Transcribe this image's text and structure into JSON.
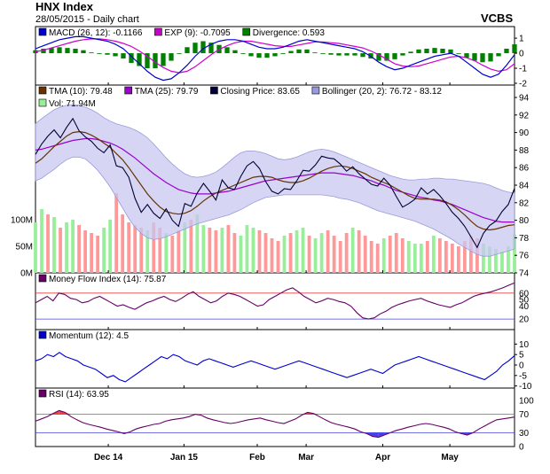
{
  "header": {
    "title": "HNX Index",
    "date_line": "28/05/2015 - Daily chart",
    "brand": "VCBS"
  },
  "colors": {
    "macd": "#0000cc",
    "signal": "#cc00cc",
    "divergence": "#008000",
    "tma10": "#663300",
    "tma25": "#9900cc",
    "close": "#000033",
    "bollinger_fill": "#c8c8f0",
    "bollinger_edge": "#9999dd",
    "vol_up": "#99ee99",
    "vol_down": "#ff9999",
    "mfi": "#660066",
    "momentum": "#0000cc",
    "rsi": "#660066",
    "rsi_over": "#ee4444",
    "rsi_under": "#4444ee",
    "guide_high": "#dd4444",
    "guide_low": "#4444dd"
  },
  "chart_data": [
    {
      "type": "line",
      "panel": "macd",
      "legend": [
        {
          "label": "MACD (26, 12): -0.1166",
          "color_key": "macd"
        },
        {
          "label": "EXP (9): -0.7095",
          "color_key": "signal"
        },
        {
          "label": "Divergence: 0.593",
          "color_key": "divergence"
        }
      ],
      "ylim": [
        -2,
        1.3
      ],
      "yticks": [
        "1",
        "0",
        "-1",
        "-2"
      ],
      "series": [
        {
          "key": "macd",
          "values": [
            0.3,
            0.5,
            0.7,
            0.9,
            1.0,
            1.1,
            1.1,
            1.0,
            0.9,
            0.8,
            0.6,
            0.3,
            -0.2,
            -0.7,
            -1.2,
            -1.6,
            -1.8,
            -1.7,
            -1.3,
            -0.8,
            -0.2,
            0.3,
            0.6,
            0.8,
            0.9,
            0.9,
            0.8,
            0.6,
            0.4,
            0.3,
            0.3,
            0.4,
            0.6,
            0.8,
            0.9,
            0.8,
            0.7,
            0.6,
            0.5,
            0.4,
            0.3,
            0.1,
            -0.2,
            -0.6,
            -0.9,
            -1.1,
            -1.0,
            -0.8,
            -0.6,
            -0.4,
            -0.2,
            -0.1,
            0.0,
            -0.2,
            -0.6,
            -1.0,
            -1.4,
            -1.6,
            -1.4,
            -0.8,
            -0.1
          ]
        },
        {
          "key": "signal",
          "values": [
            0.1,
            0.2,
            0.35,
            0.5,
            0.65,
            0.8,
            0.9,
            0.95,
            0.95,
            0.9,
            0.8,
            0.65,
            0.45,
            0.15,
            -0.2,
            -0.6,
            -0.95,
            -1.2,
            -1.3,
            -1.2,
            -0.9,
            -0.5,
            -0.1,
            0.25,
            0.5,
            0.7,
            0.8,
            0.8,
            0.7,
            0.6,
            0.5,
            0.45,
            0.45,
            0.55,
            0.65,
            0.75,
            0.75,
            0.7,
            0.65,
            0.55,
            0.45,
            0.35,
            0.15,
            -0.1,
            -0.4,
            -0.7,
            -0.85,
            -0.9,
            -0.85,
            -0.7,
            -0.55,
            -0.4,
            -0.25,
            -0.2,
            -0.3,
            -0.5,
            -0.8,
            -1.05,
            -1.2,
            -1.1,
            -0.7
          ]
        },
        {
          "key": "divergence",
          "values": [
            0.2,
            0.3,
            0.35,
            0.4,
            0.35,
            0.3,
            0.2,
            0.05,
            -0.05,
            -0.1,
            -0.2,
            -0.35,
            -0.65,
            -0.85,
            -1.0,
            -1.0,
            -0.85,
            -0.5,
            0.0,
            0.4,
            0.7,
            0.8,
            0.7,
            0.55,
            0.4,
            0.2,
            0.0,
            -0.2,
            -0.3,
            -0.3,
            -0.2,
            -0.05,
            0.15,
            0.25,
            0.25,
            0.05,
            -0.05,
            -0.1,
            -0.15,
            -0.15,
            -0.15,
            -0.25,
            -0.35,
            -0.5,
            -0.5,
            -0.4,
            -0.15,
            0.1,
            0.25,
            0.3,
            0.35,
            0.3,
            0.25,
            0.0,
            -0.3,
            -0.5,
            -0.6,
            -0.55,
            -0.2,
            0.3,
            0.59
          ]
        }
      ]
    },
    {
      "type": "line",
      "panel": "price",
      "legend": [
        {
          "label": "TMA (10): 79.48",
          "color_key": "tma10"
        },
        {
          "label": "TMA (25): 79.79",
          "color_key": "tma25"
        },
        {
          "label": "Closing Price: 83.65",
          "color_key": "close"
        },
        {
          "label": "Bollinger (20, 2): 76.72 - 83.12",
          "color_key": "bollinger_edge"
        },
        {
          "label": "Vol: 71.94M",
          "color_key": "vol_up"
        }
      ],
      "ylim": [
        74,
        94
      ],
      "yticks": [
        "94",
        "92",
        "90",
        "88",
        "86",
        "84",
        "82",
        "80",
        "78",
        "76",
        "74"
      ],
      "volume_ticks": [
        "100M",
        "50M",
        "0M"
      ],
      "volume_max": 180,
      "close": [
        87.5,
        88.7,
        89.6,
        90.3,
        89.4,
        90.6,
        91.6,
        90.2,
        89.5,
        89.0,
        88.2,
        87.7,
        88.6,
        86.2,
        86.0,
        84.9,
        82.5,
        80.9,
        81.8,
        80.8,
        80.2,
        81.3,
        80.0,
        79.3,
        81.9,
        81.6,
        83.1,
        84.2,
        83.3,
        82.3,
        84.6,
        83.7,
        83.5,
        85.0,
        86.2,
        86.7,
        85.9,
        84.4,
        83.3,
        83.0,
        83.6,
        83.5,
        84.5,
        85.7,
        85.6,
        86.3,
        87.3,
        87.1,
        87.0,
        86.4,
        85.6,
        86.1,
        85.3,
        84.7,
        84.1,
        83.9,
        84.8,
        84.0,
        82.7,
        81.5,
        81.9,
        82.4,
        83.7,
        83.0,
        83.5,
        82.8,
        81.9,
        80.9,
        80.2,
        79.3,
        78.1,
        76.9,
        78.5,
        79.4,
        79.9,
        81.0,
        81.8,
        83.65
      ],
      "tma10": [
        86.5,
        87.0,
        87.7,
        88.4,
        89.0,
        89.6,
        90.0,
        90.1,
        90.0,
        89.7,
        89.3,
        88.8,
        88.3,
        87.6,
        86.9,
        86.0,
        85.0,
        84.0,
        83.0,
        82.2,
        81.5,
        81.0,
        80.8,
        80.7,
        80.8,
        81.1,
        81.6,
        82.2,
        82.7,
        83.1,
        83.4,
        83.7,
        84.0,
        84.3,
        84.6,
        84.9,
        85.0,
        85.0,
        84.9,
        84.6,
        84.4,
        84.3,
        84.3,
        84.5,
        84.8,
        85.2,
        85.6,
        85.9,
        86.1,
        86.2,
        86.1,
        85.9,
        85.6,
        85.3,
        84.9,
        84.6,
        84.3,
        84.0,
        83.6,
        83.2,
        82.8,
        82.5,
        82.4,
        82.4,
        82.4,
        82.3,
        82.1,
        81.7,
        81.2,
        80.6,
        79.9,
        79.3,
        79.0,
        78.9,
        79.0,
        79.2,
        79.4,
        79.48
      ],
      "tma25": [
        88.0,
        88.1,
        88.3,
        88.5,
        88.7,
        88.9,
        89.1,
        89.2,
        89.3,
        89.3,
        89.2,
        89.0,
        88.8,
        88.5,
        88.1,
        87.6,
        87.1,
        86.5,
        85.9,
        85.3,
        84.8,
        84.3,
        83.9,
        83.5,
        83.3,
        83.1,
        83.0,
        83.0,
        83.0,
        83.1,
        83.2,
        83.3,
        83.5,
        83.7,
        83.9,
        84.1,
        84.3,
        84.5,
        84.6,
        84.7,
        84.8,
        84.9,
        85.0,
        85.1,
        85.2,
        85.3,
        85.4,
        85.4,
        85.4,
        85.3,
        85.2,
        85.1,
        84.9,
        84.7,
        84.5,
        84.2,
        84.0,
        83.7,
        83.4,
        83.2,
        83.0,
        82.8,
        82.6,
        82.5,
        82.3,
        82.2,
        82.0,
        81.8,
        81.5,
        81.2,
        80.9,
        80.6,
        80.3,
        80.1,
        79.9,
        79.8,
        79.8,
        79.79
      ],
      "bb_upper": [
        91.0,
        91.6,
        92.1,
        92.6,
        92.9,
        93.1,
        93.2,
        93.1,
        92.9,
        92.6,
        92.2,
        91.7,
        91.3,
        91.0,
        90.8,
        90.6,
        90.3,
        89.9,
        89.4,
        88.7,
        87.9,
        87.1,
        86.4,
        85.8,
        85.3,
        85.0,
        84.9,
        85.0,
        85.2,
        85.5,
        86.0,
        86.6,
        87.2,
        87.7,
        87.9,
        87.9,
        87.8,
        87.6,
        87.3,
        87.0,
        86.9,
        87.0,
        87.2,
        87.5,
        87.8,
        88.0,
        88.1,
        88.0,
        87.8,
        87.5,
        87.2,
        86.9,
        86.6,
        86.3,
        86.0,
        85.7,
        85.4,
        85.1,
        84.9,
        84.7,
        84.6,
        84.6,
        84.7,
        84.7,
        84.8,
        84.8,
        84.7,
        84.7,
        84.6,
        84.5,
        84.4,
        84.3,
        84.2,
        84.0,
        83.7,
        83.4,
        83.2,
        83.12
      ],
      "bb_lower": [
        84.5,
        84.8,
        85.3,
        85.8,
        86.4,
        86.9,
        87.2,
        87.2,
        87.0,
        86.4,
        85.7,
        84.8,
        83.8,
        82.6,
        81.4,
        80.2,
        79.2,
        78.5,
        78.0,
        77.8,
        77.9,
        78.1,
        78.4,
        78.7,
        79.0,
        79.3,
        79.6,
        79.8,
        80.0,
        80.2,
        80.4,
        80.6,
        80.9,
        81.2,
        81.6,
        82.0,
        82.3,
        82.6,
        82.7,
        82.8,
        82.9,
        82.9,
        82.9,
        82.9,
        82.9,
        82.9,
        82.9,
        82.8,
        82.7,
        82.5,
        82.4,
        82.2,
        82.0,
        81.7,
        81.4,
        81.1,
        80.9,
        80.7,
        80.5,
        80.3,
        80.1,
        79.9,
        79.6,
        79.3,
        79.0,
        78.6,
        78.2,
        77.8,
        77.3,
        76.9,
        76.5,
        76.1,
        75.9,
        75.9,
        76.1,
        76.3,
        76.5,
        76.72
      ],
      "volume": [
        95,
        120,
        110,
        105,
        85,
        95,
        100,
        90,
        80,
        75,
        70,
        85,
        100,
        150,
        110,
        95,
        90,
        85,
        80,
        95,
        85,
        75,
        70,
        80,
        95,
        100,
        110,
        90,
        85,
        80,
        85,
        90,
        75,
        70,
        90,
        85,
        80,
        75,
        65,
        60,
        70,
        75,
        80,
        85,
        70,
        65,
        75,
        80,
        70,
        60,
        75,
        85,
        80,
        70,
        60,
        55,
        65,
        70,
        75,
        65,
        60,
        55,
        55,
        60,
        70,
        65,
        60,
        55,
        50,
        60,
        70,
        65,
        55,
        50,
        45,
        40,
        50,
        71.94
      ],
      "volume_up": [
        true,
        true,
        false,
        true,
        false,
        true,
        true,
        false,
        false,
        false,
        false,
        true,
        true,
        false,
        false,
        false,
        false,
        false,
        true,
        false,
        false,
        true,
        false,
        false,
        true,
        false,
        true,
        true,
        false,
        false,
        true,
        false,
        false,
        true,
        true,
        true,
        false,
        false,
        false,
        false,
        true,
        false,
        true,
        true,
        false,
        true,
        true,
        false,
        false,
        false,
        false,
        true,
        false,
        false,
        false,
        false,
        true,
        false,
        false,
        false,
        true,
        true,
        true,
        false,
        true,
        false,
        false,
        false,
        false,
        false,
        false,
        false,
        true,
        true,
        true,
        true,
        true,
        true
      ]
    },
    {
      "type": "line",
      "panel": "mfi",
      "legend": [
        {
          "label": "Money Flow Index (14): 75.87",
          "color_key": "mfi"
        }
      ],
      "ylim": [
        12,
        72
      ],
      "yticks": [
        "60",
        "50",
        "40",
        "20"
      ],
      "guides": [
        80,
        20
      ],
      "values": [
        45,
        50,
        55,
        48,
        60,
        58,
        52,
        50,
        45,
        47,
        52,
        55,
        50,
        45,
        40,
        42,
        38,
        35,
        40,
        45,
        48,
        52,
        55,
        50,
        47,
        52,
        58,
        62,
        55,
        50,
        45,
        48,
        55,
        60,
        58,
        55,
        50,
        45,
        40,
        42,
        50,
        55,
        60,
        65,
        68,
        62,
        55,
        50,
        45,
        48,
        52,
        50,
        47,
        45,
        40,
        30,
        22,
        20,
        22,
        28,
        32,
        38,
        42,
        45,
        48,
        50,
        52,
        48,
        45,
        42,
        40,
        38,
        42,
        45,
        50,
        55,
        58,
        60,
        62,
        65,
        68,
        72,
        75.87
      ]
    },
    {
      "type": "line",
      "panel": "momentum",
      "legend": [
        {
          "label": "Momentum (12): 4.5",
          "color_key": "momentum"
        }
      ],
      "ylim": [
        -11,
        11
      ],
      "yticks": [
        "10",
        "5",
        "0",
        "-5",
        "-10"
      ],
      "values": [
        2,
        3,
        5,
        4,
        6,
        4,
        3,
        2,
        0,
        -1,
        -2,
        -4,
        -6,
        -5,
        -7,
        -8,
        -6,
        -4,
        -2,
        0,
        2,
        4,
        3,
        5,
        4,
        2,
        1,
        0,
        2,
        3,
        2,
        1,
        0,
        -1,
        0,
        1,
        2,
        1,
        0,
        -1,
        -2,
        -1,
        0,
        1,
        2,
        1,
        0,
        -1,
        -2,
        -3,
        -4,
        -5,
        -6,
        -5,
        -4,
        -3,
        -2,
        -3,
        -4,
        -2,
        0,
        1,
        2,
        3,
        4,
        3,
        2,
        1,
        0,
        -1,
        -2,
        -3,
        -4,
        -5,
        -6,
        -7,
        -5,
        -3,
        0,
        2,
        4.5
      ]
    },
    {
      "type": "line",
      "panel": "rsi",
      "legend": [
        {
          "label": "RSI (14): 63.95",
          "color_key": "rsi"
        }
      ],
      "ylim": [
        0,
        100
      ],
      "yticks": [
        "100",
        "70",
        "30",
        "0"
      ],
      "guides": [
        70,
        30
      ],
      "values": [
        55,
        60,
        65,
        72,
        78,
        74,
        65,
        58,
        52,
        48,
        45,
        42,
        38,
        35,
        32,
        28,
        32,
        38,
        42,
        45,
        48,
        50,
        55,
        58,
        60,
        62,
        65,
        70,
        68,
        62,
        58,
        55,
        52,
        50,
        52,
        55,
        58,
        60,
        62,
        58,
        55,
        52,
        50,
        55,
        60,
        68,
        74,
        72,
        65,
        58,
        52,
        48,
        45,
        42,
        38,
        32,
        28,
        22,
        20,
        25,
        30,
        35,
        38,
        42,
        45,
        48,
        50,
        48,
        45,
        42,
        38,
        32,
        28,
        25,
        30,
        38,
        45,
        52,
        58,
        60,
        62,
        63.95
      ]
    },
    {
      "type": "axis",
      "panel": "x-axis",
      "xticks": [
        {
          "label": "Dec 14",
          "pos": 0.152
        },
        {
          "label": "Jan 15",
          "pos": 0.31
        },
        {
          "label": "Feb",
          "pos": 0.463
        },
        {
          "label": "Mar",
          "pos": 0.565
        },
        {
          "label": "Apr",
          "pos": 0.725
        },
        {
          "label": "May",
          "pos": 0.865
        }
      ]
    }
  ]
}
